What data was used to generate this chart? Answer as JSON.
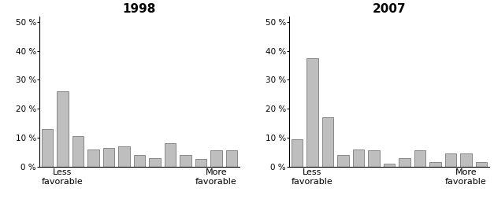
{
  "title_1998": "1998",
  "title_2007": "2007",
  "values_1998": [
    13,
    26,
    10.5,
    6,
    6.5,
    7,
    4,
    3,
    8,
    4,
    2.5,
    5.5,
    5.5
  ],
  "values_2007": [
    9.5,
    37.5,
    17,
    4,
    6,
    5.5,
    1,
    3,
    5.5,
    1.5,
    4.5,
    4.5,
    1.5
  ],
  "bar_color": "#bebebe",
  "bar_edgecolor": "#666666",
  "ylim": [
    0,
    52
  ],
  "yticks": [
    0,
    10,
    20,
    30,
    40,
    50
  ],
  "xlabel_less": "Less\nfavorable",
  "xlabel_more": "More\nfavorable",
  "less_bar_index": 1,
  "more_bar_index": 11,
  "background_color": "#ffffff",
  "title_fontsize": 11,
  "tick_fontsize": 7.5,
  "label_fontsize": 8,
  "bar_width": 0.75
}
